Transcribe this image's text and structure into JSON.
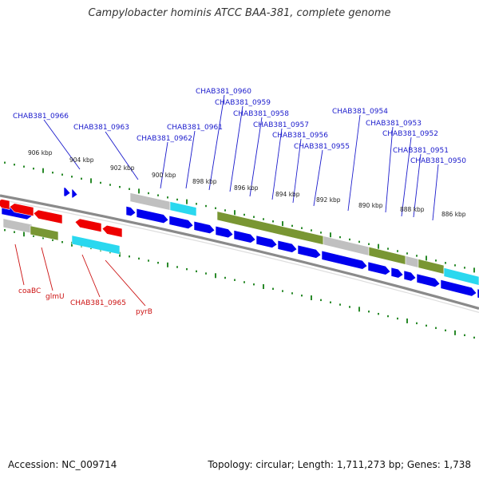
{
  "title": "Campylobacter hominis ATCC BAA-381, complete genome",
  "footer": {
    "accession": "Accession: NC_009714",
    "topology": "Topology: circular; Length: 1,711,273 bp; Genes: 1,738"
  },
  "colors": {
    "backbone": "#8a8a8a",
    "forward_gene": "#0000ee",
    "reverse_gene": "#ee0000",
    "feature_olive": "#6e8e22",
    "feature_grey": "#bbbbbb",
    "feature_cyan": "#19d5ee",
    "tick_green": "#2a8a2a",
    "label_blue": "#1a1acc",
    "label_red": "#cc1111"
  },
  "tick_labels": [
    "906 kbp",
    "904 kbp",
    "902 kbp",
    "900 kbp",
    "898 kbp",
    "896 kbp",
    "894 kbp",
    "892 kbp",
    "890 kbp",
    "888 kbp",
    "886 kbp"
  ],
  "gene_labels_top": [
    "CHAB381_0966",
    "CHAB381_0963",
    "CHAB381_0962",
    "CHAB381_0961",
    "CHAB381_0960",
    "CHAB381_0959",
    "CHAB381_0958",
    "CHAB381_0957",
    "CHAB381_0956",
    "CHAB381_0955",
    "CHAB381_0954",
    "CHAB381_0953",
    "CHAB381_0952",
    "CHAB381_0951",
    "CHAB381_0950"
  ],
  "gene_labels_bottom": [
    "coaBC",
    "glmU",
    "CHAB381_0965",
    "pyrB"
  ]
}
